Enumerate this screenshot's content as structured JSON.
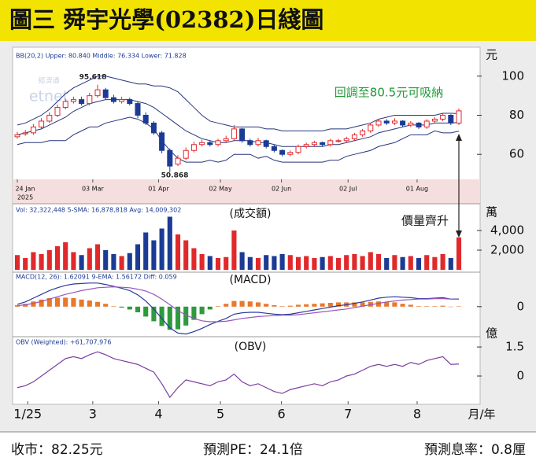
{
  "header": {
    "title": "圖三 舜宇光學(02382)日綫圖"
  },
  "chart_data": [
    {
      "type": "candlestick",
      "legend_text": "BB(20,2)  Upper: 80.840  Middle: 76.334  Lower: 71.828",
      "unit": "元",
      "year": "2025",
      "watermark": [
        "經濟通",
        "etnet"
      ],
      "annotations": [
        {
          "text": "95.618"
        },
        {
          "text": "50.868"
        },
        {
          "text": "回調至80.5元可吸納"
        }
      ],
      "up_color": "#e0292b",
      "down_color": "#1b3b94",
      "band_color": "#26357d",
      "open": [
        69,
        70.5,
        71,
        74,
        77,
        80,
        84,
        87,
        88,
        86,
        90,
        93,
        89,
        87,
        88,
        86,
        80,
        76,
        71,
        62,
        55,
        58,
        62,
        65,
        66,
        65,
        67,
        68,
        73,
        67,
        65,
        67,
        64,
        62,
        60,
        61,
        64,
        65,
        66,
        65,
        67,
        67,
        68,
        70,
        72,
        75,
        77,
        76,
        77,
        75,
        76,
        74,
        77,
        78,
        80,
        76
      ],
      "high": [
        71.5,
        72.5,
        75.5,
        78.5,
        81.5,
        85.5,
        88.5,
        89.5,
        89.5,
        91.5,
        95.618,
        94,
        90.5,
        89.5,
        89,
        87,
        81.5,
        77,
        72,
        63,
        59.5,
        63.5,
        66.5,
        67.5,
        67,
        68,
        69.5,
        75,
        73.5,
        68,
        68.5,
        67.5,
        65,
        62.5,
        62,
        65,
        66,
        67,
        66.5,
        68,
        68,
        69,
        71,
        73,
        76,
        78,
        78,
        78.5,
        77.5,
        77,
        76.5,
        78,
        79,
        81,
        80.5,
        83.5
      ],
      "low": [
        68,
        69.5,
        70,
        73,
        76,
        79,
        83,
        86,
        85,
        85,
        89,
        88,
        86,
        86,
        85,
        78.5,
        75,
        70,
        60.5,
        50.868,
        54,
        57,
        61,
        64,
        64,
        64,
        66,
        67,
        66,
        64,
        64,
        63,
        61,
        59,
        59,
        60,
        63,
        64,
        64,
        64,
        66,
        66,
        67,
        69,
        71,
        74,
        75,
        75,
        74,
        74,
        73,
        73,
        76,
        77,
        75,
        75
      ],
      "close": [
        70,
        71,
        74,
        77,
        80,
        84,
        87,
        88,
        86,
        90,
        93,
        89,
        87,
        88,
        86,
        80,
        76,
        71,
        62,
        54,
        58,
        62,
        65,
        66,
        65,
        67,
        68,
        73,
        67,
        65,
        67,
        64,
        62,
        60,
        61,
        64,
        65,
        66,
        65,
        67,
        67,
        68,
        70,
        72,
        75,
        77,
        76,
        77,
        75,
        76,
        74,
        77,
        78,
        80,
        76,
        82.25
      ],
      "bands": [
        {
          "values": [
            75,
            76,
            78,
            80,
            83,
            87,
            91,
            94,
            96,
            98,
            100,
            100,
            99,
            98,
            97,
            96,
            96,
            95,
            95,
            94,
            92,
            88,
            84,
            80,
            77,
            76,
            75,
            74,
            74,
            74,
            74,
            73,
            73,
            72,
            72,
            72,
            72,
            72,
            72,
            73,
            73,
            73,
            74,
            75,
            76,
            78,
            79,
            80,
            80,
            80,
            80,
            80,
            80,
            81,
            81,
            80.84
          ]
        },
        {
          "values": [
            70,
            71,
            72,
            73,
            75,
            77,
            79,
            82,
            84,
            86,
            87,
            88,
            88,
            88,
            88,
            87,
            86,
            84,
            81,
            78,
            75,
            72,
            70,
            68,
            67,
            66,
            66,
            67,
            67,
            67,
            66,
            66,
            65,
            64,
            64,
            64,
            64,
            64,
            64,
            65,
            65,
            66,
            67,
            68,
            69,
            71,
            72,
            73,
            74,
            75,
            75,
            75,
            76,
            76,
            76,
            76.334
          ]
        },
        {
          "values": [
            65,
            66,
            66,
            66,
            67,
            67,
            67,
            70,
            72,
            74,
            74,
            76,
            77,
            78,
            79,
            78,
            76,
            73,
            67,
            62,
            58,
            56,
            56,
            56,
            57,
            56,
            57,
            60,
            60,
            60,
            58,
            59,
            57,
            56,
            56,
            56,
            56,
            56,
            56,
            57,
            57,
            59,
            60,
            61,
            62,
            64,
            65,
            66,
            68,
            70,
            70,
            70,
            72,
            71,
            71,
            71.828
          ]
        }
      ],
      "xlim": [
        0,
        55
      ],
      "xticks": [
        {
          "value": 0,
          "label": "24 Jan"
        },
        {
          "value": 9.4,
          "label": "03 Mar"
        },
        {
          "value": 17.6,
          "label": "01 Apr"
        },
        {
          "value": 25.3,
          "label": "02 May"
        },
        {
          "value": 32.9,
          "label": "02 Jun"
        },
        {
          "value": 41.2,
          "label": "02 Jul"
        },
        {
          "value": 49.8,
          "label": "01 Aug"
        }
      ],
      "ylim": [
        47.2,
        113.6
      ],
      "yticks": [
        60,
        80,
        100
      ]
    },
    {
      "type": "bar",
      "legend_text": "Vol: 32,322,448  5-SMA: 16,878,818  Avg: 14,009,302",
      "title": "(成交額)",
      "unit": "萬",
      "annotations": [
        {
          "text": "價量齊升"
        }
      ],
      "up_color": "#e0292b",
      "down_color": "#1b3b94",
      "values": [
        1500,
        1200,
        1800,
        1600,
        2000,
        2400,
        2800,
        1800,
        1500,
        2200,
        2600,
        2000,
        1600,
        1400,
        1700,
        2600,
        3800,
        3000,
        4200,
        5400,
        3600,
        3000,
        2200,
        1600,
        1400,
        1200,
        1300,
        4000,
        1800,
        1300,
        1200,
        1500,
        1400,
        1600,
        1500,
        1300,
        1400,
        1200,
        1300,
        1400,
        1200,
        1500,
        1600,
        1400,
        1800,
        1600,
        1200,
        1500,
        1300,
        1400,
        1200,
        1500,
        1300,
        1600,
        1200,
        3300
      ],
      "xlim": [
        0,
        55
      ],
      "ylim": [
        0,
        6480
      ],
      "yticks": [
        {
          "value": 2000,
          "label": "2,000"
        },
        {
          "value": 4000,
          "label": "4,000"
        }
      ]
    },
    {
      "type": "macd",
      "legend_text": "MACD(12, 26): 1.62091  9-EMA: 1.56172  Diff: 0.059",
      "title": "(MACD)",
      "series": [
        {
          "kind": "line",
          "color": "#2a3c9a",
          "values": [
            0.5,
            1.0,
            1.8,
            2.6,
            3.4,
            4.0,
            4.5,
            4.8,
            4.9,
            5.0,
            5.0,
            4.7,
            4.3,
            3.9,
            3.4,
            2.5,
            1.2,
            -0.5,
            -2.5,
            -4.5,
            -5.6,
            -5.8,
            -5.3,
            -4.6,
            -3.8,
            -3.1,
            -2.5,
            -1.6,
            -1.3,
            -1.2,
            -1.2,
            -1.4,
            -1.6,
            -1.7,
            -1.6,
            -1.3,
            -1.0,
            -0.7,
            -0.4,
            -0.1,
            0.2,
            0.4,
            0.7,
            1.0,
            1.4,
            1.8,
            2.0,
            2.1,
            2.0,
            1.9,
            1.7,
            1.7,
            1.8,
            1.9,
            1.6,
            1.62091
          ]
        },
        {
          "kind": "line",
          "color": "#9a55c0",
          "values": [
            0.2,
            0.4,
            0.7,
            1.1,
            1.6,
            2.1,
            2.6,
            3.0,
            3.4,
            3.7,
            4.0,
            4.1,
            4.2,
            4.1,
            4.0,
            3.7,
            3.3,
            2.6,
            1.6,
            0.4,
            -0.8,
            -1.8,
            -2.5,
            -3.0,
            -3.2,
            -3.2,
            -3.1,
            -2.8,
            -2.5,
            -2.3,
            -2.1,
            -2.0,
            -1.9,
            -1.8,
            -1.8,
            -1.7,
            -1.5,
            -1.3,
            -1.1,
            -0.9,
            -0.7,
            -0.5,
            -0.2,
            0.1,
            0.4,
            0.7,
            1.0,
            1.2,
            1.4,
            1.5,
            1.6,
            1.6,
            1.7,
            1.7,
            1.6,
            1.56172
          ]
        },
        {
          "kind": "histogram",
          "color": "#e8782a",
          "negative_color": "#2e9a3e",
          "values": [
            0.3,
            0.6,
            1.1,
            1.5,
            1.8,
            1.9,
            1.9,
            1.8,
            1.5,
            1.3,
            1.0,
            0.6,
            0.1,
            -0.2,
            -0.6,
            -1.2,
            -2.1,
            -3.1,
            -4.1,
            -4.9,
            -4.8,
            -4.0,
            -2.8,
            -1.6,
            -0.6,
            0.1,
            0.6,
            1.2,
            1.2,
            1.1,
            0.9,
            0.6,
            0.3,
            0.1,
            0.2,
            0.4,
            0.5,
            0.6,
            0.7,
            0.8,
            0.9,
            0.9,
            0.9,
            0.9,
            1.0,
            1.1,
            1.0,
            0.9,
            0.6,
            0.4,
            0.1,
            0.1,
            0.1,
            0.2,
            0.0,
            0.059
          ]
        }
      ],
      "xlim": [
        0,
        55
      ],
      "ylim": [
        -6.2,
        6.8
      ],
      "yticks": [
        0
      ]
    },
    {
      "type": "line",
      "legend_text": "OBV (Weighted): +61,707,976",
      "title": "(OBV)",
      "unit": "億",
      "color": "#7b3fa0",
      "values": [
        -0.6,
        -0.5,
        -0.3,
        0.0,
        0.3,
        0.6,
        0.9,
        1.0,
        0.9,
        1.1,
        1.25,
        1.1,
        0.9,
        0.8,
        0.7,
        0.6,
        0.4,
        0.2,
        -0.4,
        -1.1,
        -0.6,
        -0.2,
        -0.3,
        -0.4,
        -0.5,
        -0.3,
        -0.2,
        0.1,
        -0.3,
        -0.5,
        -0.4,
        -0.6,
        -0.8,
        -0.9,
        -0.7,
        -0.6,
        -0.5,
        -0.4,
        -0.5,
        -0.3,
        -0.2,
        0.0,
        0.1,
        0.3,
        0.5,
        0.6,
        0.5,
        0.6,
        0.5,
        0.7,
        0.6,
        0.8,
        0.9,
        1.0,
        0.6,
        0.62
      ],
      "xlim": [
        0,
        55
      ],
      "ylim": [
        -1.3,
        1.95
      ],
      "yticks": [
        0,
        1.5
      ],
      "xticks": [
        {
          "value": 1.3,
          "label": "1/25"
        },
        {
          "value": 9.4,
          "label": "3"
        },
        {
          "value": 17.6,
          "label": "4"
        },
        {
          "value": 25.3,
          "label": "5"
        },
        {
          "value": 32.9,
          "label": "6"
        },
        {
          "value": 41.2,
          "label": "7"
        },
        {
          "value": 49.8,
          "label": "8"
        }
      ],
      "xlabel": "月/年"
    }
  ],
  "footer": {
    "close": "收市：82.25元",
    "pe": "預測PE：24.1倍",
    "yield": "預測息率：0.8厘"
  }
}
